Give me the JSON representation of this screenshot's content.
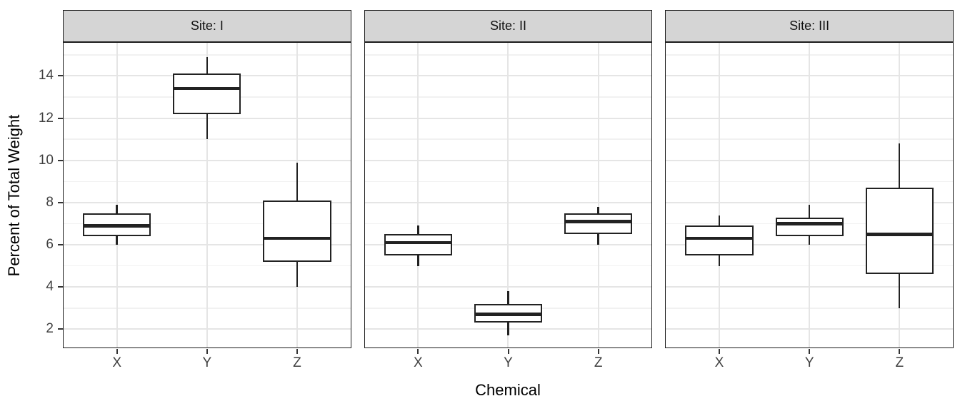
{
  "chart_data": {
    "type": "boxplot",
    "title": "",
    "xlabel": "Chemical",
    "ylabel": "Percent of Total Weight",
    "categories": [
      "X",
      "Y",
      "Z"
    ],
    "y_ticks": [
      2,
      4,
      6,
      8,
      10,
      12,
      14
    ],
    "ylim": [
      1.1,
      15.6
    ],
    "grid": {
      "horizontal_major": "even values 2-14",
      "horizontal_minor": "odd values 3-15",
      "vertical": "at each category"
    },
    "legend": "none",
    "facets": [
      {
        "label": "Site: I",
        "boxes": [
          {
            "category": "X",
            "whisker_low": 6.0,
            "q1": 6.4,
            "median": 6.9,
            "q3": 7.5,
            "whisker_high": 7.9
          },
          {
            "category": "Y",
            "whisker_low": 11.0,
            "q1": 12.2,
            "median": 13.4,
            "q3": 14.1,
            "whisker_high": 14.9
          },
          {
            "category": "Z",
            "whisker_low": 4.0,
            "q1": 5.2,
            "median": 6.3,
            "q3": 8.1,
            "whisker_high": 9.9
          }
        ]
      },
      {
        "label": "Site: II",
        "boxes": [
          {
            "category": "X",
            "whisker_low": 5.0,
            "q1": 5.5,
            "median": 6.1,
            "q3": 6.5,
            "whisker_high": 6.9
          },
          {
            "category": "Y",
            "whisker_low": 1.7,
            "q1": 2.3,
            "median": 2.7,
            "q3": 3.2,
            "whisker_high": 3.8
          },
          {
            "category": "Z",
            "whisker_low": 6.0,
            "q1": 6.5,
            "median": 7.1,
            "q3": 7.5,
            "whisker_high": 7.8
          }
        ]
      },
      {
        "label": "Site: III",
        "boxes": [
          {
            "category": "X",
            "whisker_low": 5.0,
            "q1": 5.5,
            "median": 6.3,
            "q3": 6.9,
            "whisker_high": 7.4
          },
          {
            "category": "Y",
            "whisker_low": 6.0,
            "q1": 6.4,
            "median": 7.0,
            "q3": 7.3,
            "whisker_high": 7.9
          },
          {
            "category": "Z",
            "whisker_low": 3.0,
            "q1": 4.6,
            "median": 6.5,
            "q3": 8.7,
            "whisker_high": 10.8
          }
        ]
      }
    ],
    "colors": {
      "box_border": "#222222",
      "box_fill": "#ffffff",
      "median": "#222222",
      "strip_fill": "#d5d5d5",
      "panel_border": "#1c1c1c",
      "grid_major": "#e5e5e5",
      "grid_minor": "#f1f1f1",
      "tick_text": "#404040",
      "axis_title_text": "#000000",
      "background": "#ffffff"
    }
  }
}
